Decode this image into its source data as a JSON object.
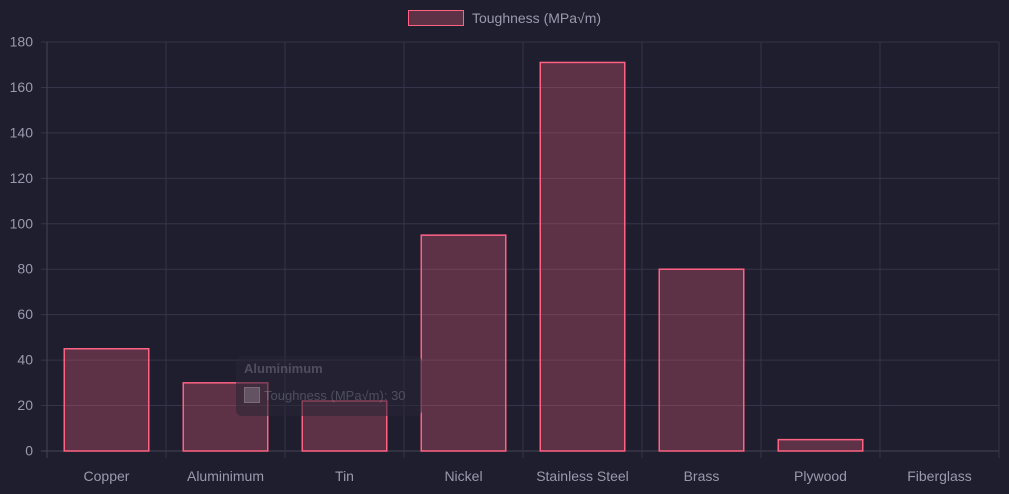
{
  "chart_data": {
    "type": "bar",
    "categories": [
      "Copper",
      "Aluminimum",
      "Tin",
      "Nickel",
      "Stainless Steel",
      "Brass",
      "Plywood",
      "Fiberglass"
    ],
    "series": [
      {
        "name": "Toughness (MPa√m)",
        "values": [
          45,
          30,
          22,
          95,
          171,
          80,
          5,
          0
        ]
      }
    ],
    "ylim": [
      0,
      180
    ],
    "yticks": [
      0,
      20,
      40,
      60,
      80,
      100,
      120,
      140,
      160,
      180
    ],
    "grid": true,
    "legend_position": "top-center",
    "title": "",
    "xlabel": "",
    "ylabel": "",
    "colors": {
      "bar_fill": "rgba(255, 99, 132, 0.28)",
      "bar_border": "#ff6384",
      "grid": "#35344a",
      "axis": "#45445a",
      "tick_text": "#9a9aae",
      "background": "#1f1e2e"
    }
  },
  "legend": {
    "label": "Toughness (MPa√m)"
  },
  "tooltip": {
    "title": "Aluminimum",
    "body": "Toughness (MPa√m): 30"
  }
}
